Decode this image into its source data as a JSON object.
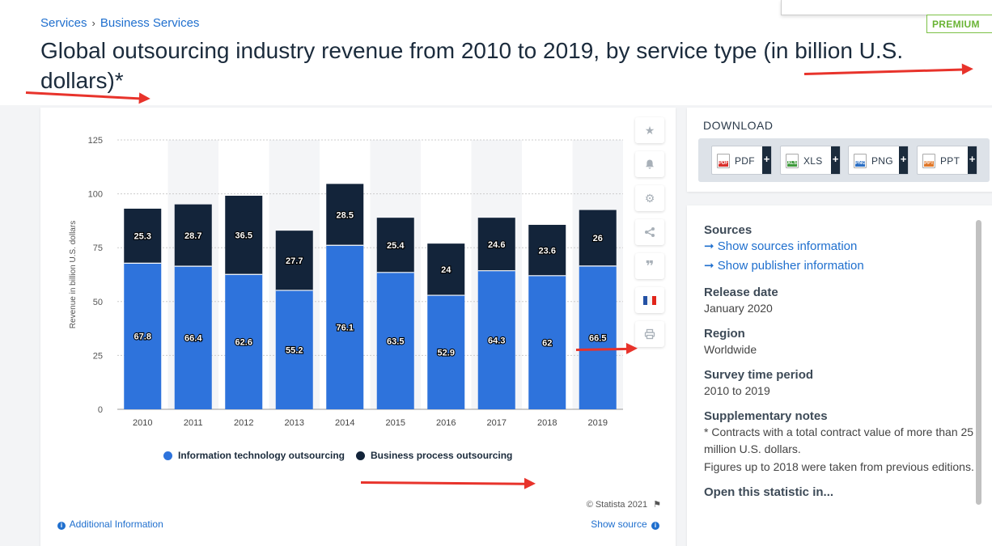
{
  "breadcrumb": {
    "items": [
      "Services",
      "Business Services"
    ],
    "separator": "›"
  },
  "page": {
    "title": "Global outsourcing industry revenue from 2010 to 2019, by service type (in billion U.S. dollars)*",
    "premium_badge": "PREMIUM"
  },
  "colors": {
    "it": "#2e73dc",
    "bp": "#13243a",
    "accent": "#1f6fce",
    "arrow": "#e8332b",
    "premium": "#6ab435"
  },
  "toolbar": {
    "icons": [
      "star-icon",
      "bell-icon",
      "gear-icon",
      "share-icon",
      "quote-icon",
      "french-flag-icon",
      "print-icon"
    ]
  },
  "chart_data": {
    "type": "bar",
    "stacked": true,
    "categories": [
      "2010",
      "2011",
      "2012",
      "2013",
      "2014",
      "2015",
      "2016",
      "2017",
      "2018",
      "2019"
    ],
    "series": [
      {
        "name": "Information technology outsourcing",
        "values": [
          67.8,
          66.4,
          62.6,
          55.2,
          76.1,
          63.5,
          52.9,
          64.3,
          62,
          66.5
        ]
      },
      {
        "name": "Business process outsourcing",
        "values": [
          25.3,
          28.7,
          36.5,
          27.7,
          28.5,
          25.4,
          24,
          24.6,
          23.6,
          26
        ]
      }
    ],
    "ylabel": "Revenue in billion U.S. dollars",
    "xlabel": "",
    "ylim": [
      0,
      125
    ],
    "yticks": [
      0,
      25,
      50,
      75,
      100,
      125
    ],
    "grid": true,
    "legend": "bottom"
  },
  "chart_footer": {
    "copyright": "© Statista 2021",
    "additional_info": "Additional Information",
    "show_source": "Show source"
  },
  "download": {
    "title": "DOWNLOAD",
    "buttons": [
      {
        "label": "PDF",
        "icon": "pdf-file-icon",
        "color": "#d9302c"
      },
      {
        "label": "XLS",
        "icon": "xls-file-icon",
        "color": "#3f9a3c"
      },
      {
        "label": "PNG",
        "icon": "png-file-icon",
        "color": "#2b6fc4"
      },
      {
        "label": "PPT",
        "icon": "ppt-file-icon",
        "color": "#e0782a"
      }
    ],
    "plus": "+"
  },
  "info": {
    "sources_title": "Sources",
    "show_sources": "Show sources information",
    "show_publisher": "Show publisher information",
    "release_title": "Release date",
    "release_value": "January 2020",
    "region_title": "Region",
    "region_value": "Worldwide",
    "survey_title": "Survey time period",
    "survey_value": "2010 to 2019",
    "notes_title": "Supplementary notes",
    "notes_1": "* Contracts with a total contract value of more than 25 million U.S. dollars.",
    "notes_2": "Figures up to 2018 were taken from previous editions.",
    "open_title": "Open this statistic in..."
  }
}
